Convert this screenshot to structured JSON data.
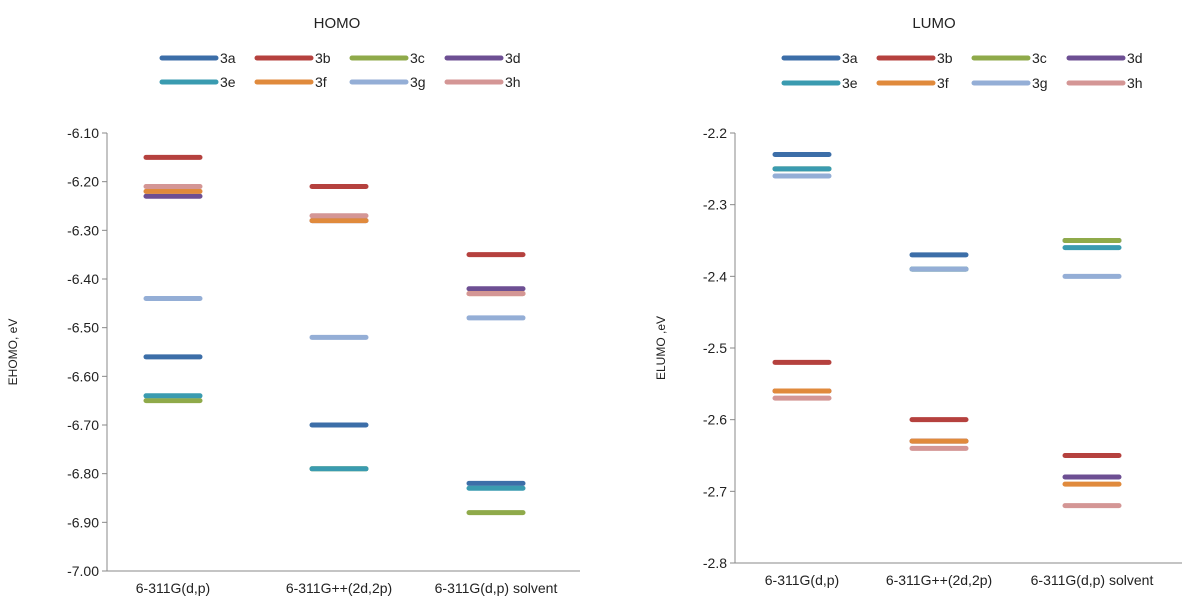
{
  "chart_data": [
    {
      "type": "scatter",
      "title": "HOMO",
      "ylabel": "EHOMO, eV",
      "xlabel": "",
      "categories": [
        "6-311G(d,p)",
        "6-311G++(2d,2p)",
        "6-311G(d,p) solvent"
      ],
      "ylim": [
        -7.0,
        -6.1
      ],
      "ystep": 0.1,
      "ydecimals": 2,
      "grid": false,
      "legend": "top",
      "series": [
        {
          "name": "3a",
          "color": "#3c6ea8",
          "values": [
            -6.56,
            -6.7,
            -6.82
          ]
        },
        {
          "name": "3b",
          "color": "#b5413e",
          "values": [
            -6.15,
            -6.21,
            -6.35
          ]
        },
        {
          "name": "3c",
          "color": "#8faa4a",
          "values": [
            -6.65,
            -6.79,
            -6.88
          ]
        },
        {
          "name": "3d",
          "color": "#6d4f93",
          "values": [
            -6.23,
            -6.28,
            -6.42
          ]
        },
        {
          "name": "3e",
          "color": "#3a9bb0",
          "values": [
            -6.64,
            -6.79,
            -6.83
          ]
        },
        {
          "name": "3f",
          "color": "#e08a3c",
          "values": [
            -6.22,
            -6.28,
            -6.43
          ]
        },
        {
          "name": "3g",
          "color": "#94aed6",
          "values": [
            -6.44,
            -6.52,
            -6.48
          ]
        },
        {
          "name": "3h",
          "color": "#d49695",
          "values": [
            -6.21,
            -6.27,
            -6.43
          ]
        }
      ]
    },
    {
      "type": "scatter",
      "title": "LUMO",
      "ylabel": "ELUMO ,eV",
      "xlabel": "",
      "categories": [
        "6-311G(d,p)",
        "6-311G++(2d,2p)",
        "6-311G(d,p) solvent"
      ],
      "ylim": [
        -2.8,
        -2.2
      ],
      "ystep": 0.1,
      "ydecimals": 1,
      "grid": false,
      "legend": "top",
      "series": [
        {
          "name": "3a",
          "color": "#3c6ea8",
          "values": [
            -2.23,
            -2.37,
            -2.35
          ]
        },
        {
          "name": "3b",
          "color": "#b5413e",
          "values": [
            -2.52,
            -2.6,
            -2.65
          ]
        },
        {
          "name": "3c",
          "color": "#8faa4a",
          "values": [
            -2.25,
            -2.39,
            -2.35
          ]
        },
        {
          "name": "3d",
          "color": "#6d4f93",
          "values": [
            -2.56,
            -2.63,
            -2.68
          ]
        },
        {
          "name": "3e",
          "color": "#3a9bb0",
          "values": [
            -2.25,
            -2.39,
            -2.36
          ]
        },
        {
          "name": "3f",
          "color": "#e08a3c",
          "values": [
            -2.56,
            -2.63,
            -2.69
          ]
        },
        {
          "name": "3g",
          "color": "#94aed6",
          "values": [
            -2.26,
            -2.39,
            -2.4
          ]
        },
        {
          "name": "3h",
          "color": "#d49695",
          "values": [
            -2.57,
            -2.64,
            -2.72
          ]
        }
      ]
    }
  ]
}
